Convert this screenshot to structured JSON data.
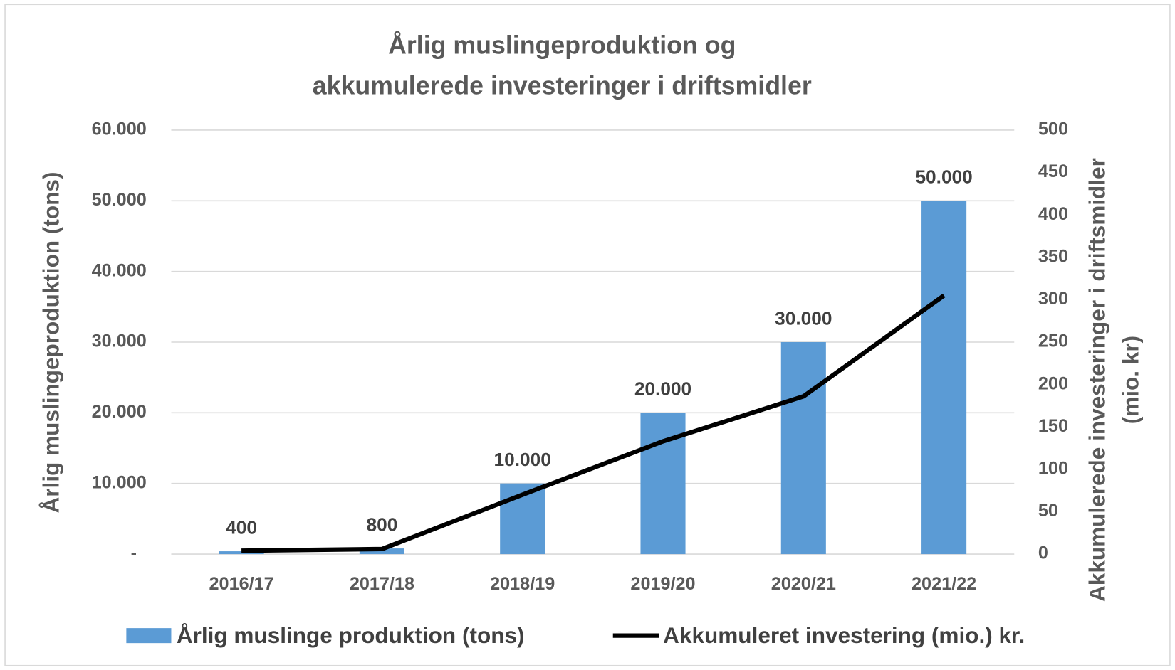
{
  "chart_data": {
    "type": "bar",
    "title": [
      "Årlig muslingeproduktion  og",
      "akkumulerede investeringer i driftsmidler"
    ],
    "y_label": "Årlig muslingeproduktion (tons)",
    "y2_label": [
      "Akkumulerede investeringer i driftsmidler",
      "(mio. kr)"
    ],
    "categories": [
      "2016/17",
      "2017/18",
      "2018/19",
      "2019/20",
      "2020/21",
      "2021/22"
    ],
    "series": [
      {
        "name": "Årlig muslinge produktion (tons)",
        "type": "bar",
        "color": "#5b9bd5",
        "values": [
          400,
          800,
          10000,
          20000,
          30000,
          50000
        ],
        "value_labels": [
          "400",
          "800",
          "10.000",
          "20.000",
          "30.000",
          "50.000"
        ]
      },
      {
        "name": "Akkumuleret investering (mio.) kr.",
        "type": "line",
        "color": "#000000",
        "axis": "y2",
        "values": [
          4,
          6,
          70,
          133,
          186,
          305
        ]
      }
    ],
    "ylim": [
      0,
      60000
    ],
    "yticks": [
      {
        "value": 0,
        "label": "-"
      },
      {
        "value": 10000,
        "label": "10.000"
      },
      {
        "value": 20000,
        "label": "20.000"
      },
      {
        "value": 30000,
        "label": "30.000"
      },
      {
        "value": 40000,
        "label": "40.000"
      },
      {
        "value": 50000,
        "label": "50.000"
      },
      {
        "value": 60000,
        "label": "60.000"
      }
    ],
    "y2lim": [
      0,
      500
    ],
    "y2ticks": [
      0,
      50,
      100,
      150,
      200,
      250,
      300,
      350,
      400,
      450,
      500
    ],
    "grid": true,
    "legend": "bottom"
  }
}
